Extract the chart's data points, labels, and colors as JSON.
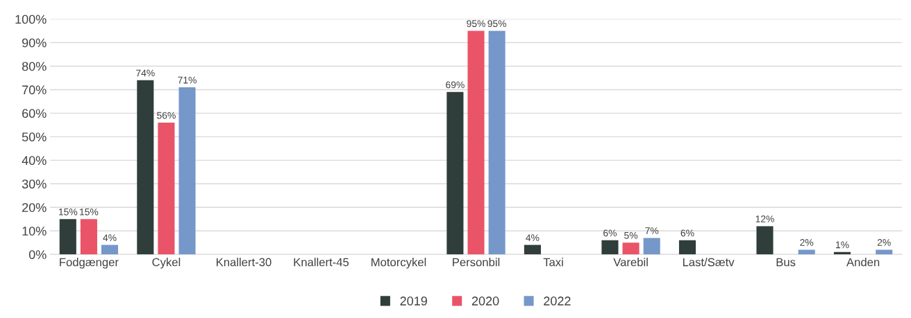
{
  "chart_data": {
    "type": "bar",
    "categories": [
      "Fodgænger",
      "Cykel",
      "Knallert-30",
      "Knallert-45",
      "Motorcykel",
      "Personbil",
      "Taxi",
      "Varebil",
      "Last/Sætv",
      "Bus",
      "Anden"
    ],
    "series": [
      {
        "name": "2019",
        "color": "#2f3d3b",
        "values": [
          15,
          74,
          null,
          null,
          null,
          69,
          4,
          6,
          6,
          12,
          1
        ],
        "value_labels": [
          "15%",
          "74%",
          null,
          null,
          null,
          "69%",
          "4%",
          "6%",
          "6%",
          "12%",
          "1%"
        ]
      },
      {
        "name": "2020",
        "color": "#ea5468",
        "values": [
          15,
          56,
          null,
          null,
          null,
          95,
          null,
          5,
          null,
          null,
          null
        ],
        "value_labels": [
          "15%",
          "56%",
          null,
          null,
          null,
          "95%",
          null,
          "5%",
          null,
          null,
          null
        ]
      },
      {
        "name": "2022",
        "color": "#7597c9",
        "values": [
          4,
          71,
          null,
          null,
          null,
          95,
          null,
          7,
          null,
          2,
          2
        ],
        "value_labels": [
          "4%",
          "71%",
          null,
          null,
          null,
          "95%",
          null,
          "7%",
          null,
          "2%",
          "2%"
        ]
      }
    ],
    "ylim": [
      0,
      100
    ],
    "yticks": [
      {
        "value": 0,
        "label": "0%"
      },
      {
        "value": 10,
        "label": "10%"
      },
      {
        "value": 20,
        "label": "20%"
      },
      {
        "value": 30,
        "label": "30%"
      },
      {
        "value": 40,
        "label": "40%"
      },
      {
        "value": 50,
        "label": "50%"
      },
      {
        "value": 60,
        "label": "60%"
      },
      {
        "value": 70,
        "label": "70%"
      },
      {
        "value": 80,
        "label": "80%"
      },
      {
        "value": 90,
        "label": "90%"
      },
      {
        "value": 100,
        "label": "100%"
      }
    ],
    "grid": "y",
    "legend": "bottom"
  }
}
